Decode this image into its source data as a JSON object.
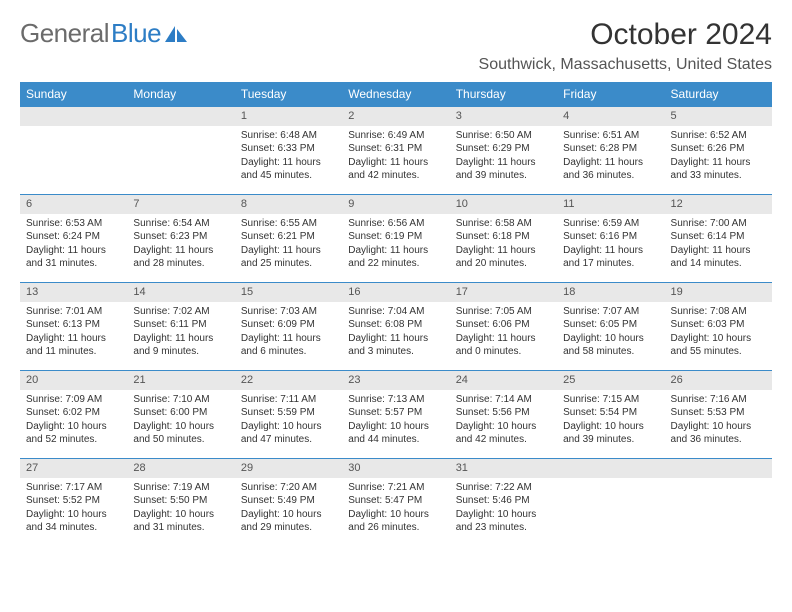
{
  "logo": {
    "text1": "General",
    "text2": "Blue"
  },
  "title": "October 2024",
  "location": "Southwick, Massachusetts, United States",
  "weekdays": [
    "Sunday",
    "Monday",
    "Tuesday",
    "Wednesday",
    "Thursday",
    "Friday",
    "Saturday"
  ],
  "colors": {
    "header_bg": "#3b8bc9",
    "header_text": "#ffffff",
    "daynum_bg": "#e8e8e8",
    "border": "#3b8bc9",
    "logo_gray": "#6b6b6b",
    "logo_blue": "#2d7dc5"
  },
  "weeks": [
    [
      null,
      null,
      {
        "n": "1",
        "sr": "Sunrise: 6:48 AM",
        "ss": "Sunset: 6:33 PM",
        "dl": "Daylight: 11 hours and 45 minutes."
      },
      {
        "n": "2",
        "sr": "Sunrise: 6:49 AM",
        "ss": "Sunset: 6:31 PM",
        "dl": "Daylight: 11 hours and 42 minutes."
      },
      {
        "n": "3",
        "sr": "Sunrise: 6:50 AM",
        "ss": "Sunset: 6:29 PM",
        "dl": "Daylight: 11 hours and 39 minutes."
      },
      {
        "n": "4",
        "sr": "Sunrise: 6:51 AM",
        "ss": "Sunset: 6:28 PM",
        "dl": "Daylight: 11 hours and 36 minutes."
      },
      {
        "n": "5",
        "sr": "Sunrise: 6:52 AM",
        "ss": "Sunset: 6:26 PM",
        "dl": "Daylight: 11 hours and 33 minutes."
      }
    ],
    [
      {
        "n": "6",
        "sr": "Sunrise: 6:53 AM",
        "ss": "Sunset: 6:24 PM",
        "dl": "Daylight: 11 hours and 31 minutes."
      },
      {
        "n": "7",
        "sr": "Sunrise: 6:54 AM",
        "ss": "Sunset: 6:23 PM",
        "dl": "Daylight: 11 hours and 28 minutes."
      },
      {
        "n": "8",
        "sr": "Sunrise: 6:55 AM",
        "ss": "Sunset: 6:21 PM",
        "dl": "Daylight: 11 hours and 25 minutes."
      },
      {
        "n": "9",
        "sr": "Sunrise: 6:56 AM",
        "ss": "Sunset: 6:19 PM",
        "dl": "Daylight: 11 hours and 22 minutes."
      },
      {
        "n": "10",
        "sr": "Sunrise: 6:58 AM",
        "ss": "Sunset: 6:18 PM",
        "dl": "Daylight: 11 hours and 20 minutes."
      },
      {
        "n": "11",
        "sr": "Sunrise: 6:59 AM",
        "ss": "Sunset: 6:16 PM",
        "dl": "Daylight: 11 hours and 17 minutes."
      },
      {
        "n": "12",
        "sr": "Sunrise: 7:00 AM",
        "ss": "Sunset: 6:14 PM",
        "dl": "Daylight: 11 hours and 14 minutes."
      }
    ],
    [
      {
        "n": "13",
        "sr": "Sunrise: 7:01 AM",
        "ss": "Sunset: 6:13 PM",
        "dl": "Daylight: 11 hours and 11 minutes."
      },
      {
        "n": "14",
        "sr": "Sunrise: 7:02 AM",
        "ss": "Sunset: 6:11 PM",
        "dl": "Daylight: 11 hours and 9 minutes."
      },
      {
        "n": "15",
        "sr": "Sunrise: 7:03 AM",
        "ss": "Sunset: 6:09 PM",
        "dl": "Daylight: 11 hours and 6 minutes."
      },
      {
        "n": "16",
        "sr": "Sunrise: 7:04 AM",
        "ss": "Sunset: 6:08 PM",
        "dl": "Daylight: 11 hours and 3 minutes."
      },
      {
        "n": "17",
        "sr": "Sunrise: 7:05 AM",
        "ss": "Sunset: 6:06 PM",
        "dl": "Daylight: 11 hours and 0 minutes."
      },
      {
        "n": "18",
        "sr": "Sunrise: 7:07 AM",
        "ss": "Sunset: 6:05 PM",
        "dl": "Daylight: 10 hours and 58 minutes."
      },
      {
        "n": "19",
        "sr": "Sunrise: 7:08 AM",
        "ss": "Sunset: 6:03 PM",
        "dl": "Daylight: 10 hours and 55 minutes."
      }
    ],
    [
      {
        "n": "20",
        "sr": "Sunrise: 7:09 AM",
        "ss": "Sunset: 6:02 PM",
        "dl": "Daylight: 10 hours and 52 minutes."
      },
      {
        "n": "21",
        "sr": "Sunrise: 7:10 AM",
        "ss": "Sunset: 6:00 PM",
        "dl": "Daylight: 10 hours and 50 minutes."
      },
      {
        "n": "22",
        "sr": "Sunrise: 7:11 AM",
        "ss": "Sunset: 5:59 PM",
        "dl": "Daylight: 10 hours and 47 minutes."
      },
      {
        "n": "23",
        "sr": "Sunrise: 7:13 AM",
        "ss": "Sunset: 5:57 PM",
        "dl": "Daylight: 10 hours and 44 minutes."
      },
      {
        "n": "24",
        "sr": "Sunrise: 7:14 AM",
        "ss": "Sunset: 5:56 PM",
        "dl": "Daylight: 10 hours and 42 minutes."
      },
      {
        "n": "25",
        "sr": "Sunrise: 7:15 AM",
        "ss": "Sunset: 5:54 PM",
        "dl": "Daylight: 10 hours and 39 minutes."
      },
      {
        "n": "26",
        "sr": "Sunrise: 7:16 AM",
        "ss": "Sunset: 5:53 PM",
        "dl": "Daylight: 10 hours and 36 minutes."
      }
    ],
    [
      {
        "n": "27",
        "sr": "Sunrise: 7:17 AM",
        "ss": "Sunset: 5:52 PM",
        "dl": "Daylight: 10 hours and 34 minutes."
      },
      {
        "n": "28",
        "sr": "Sunrise: 7:19 AM",
        "ss": "Sunset: 5:50 PM",
        "dl": "Daylight: 10 hours and 31 minutes."
      },
      {
        "n": "29",
        "sr": "Sunrise: 7:20 AM",
        "ss": "Sunset: 5:49 PM",
        "dl": "Daylight: 10 hours and 29 minutes."
      },
      {
        "n": "30",
        "sr": "Sunrise: 7:21 AM",
        "ss": "Sunset: 5:47 PM",
        "dl": "Daylight: 10 hours and 26 minutes."
      },
      {
        "n": "31",
        "sr": "Sunrise: 7:22 AM",
        "ss": "Sunset: 5:46 PM",
        "dl": "Daylight: 10 hours and 23 minutes."
      },
      null,
      null
    ]
  ]
}
